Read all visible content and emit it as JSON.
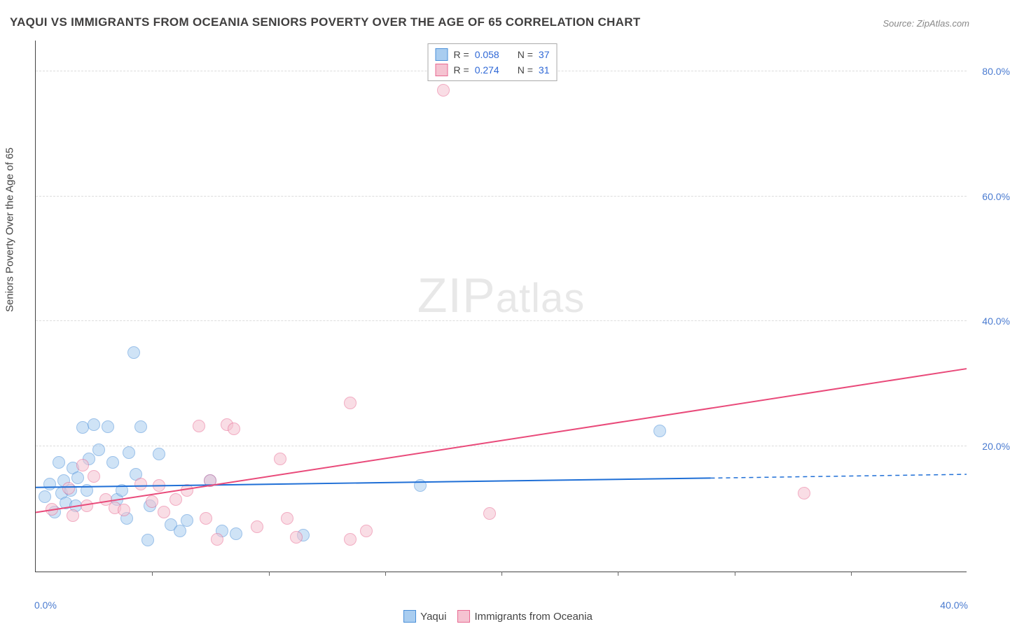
{
  "title": "YAQUI VS IMMIGRANTS FROM OCEANIA SENIORS POVERTY OVER THE AGE OF 65 CORRELATION CHART",
  "source": "Source: ZipAtlas.com",
  "watermark_a": "ZIP",
  "watermark_b": "atlas",
  "chart": {
    "type": "scatter+regression",
    "background_color": "#ffffff",
    "grid_color": "#dcdcdc",
    "axis_color": "#444444",
    "label_color": "#4a7bd0",
    "xlim": [
      0,
      40
    ],
    "ylim": [
      0,
      85
    ],
    "ytick_positions": [
      20,
      40,
      60,
      80
    ],
    "ytick_labels": [
      "20.0%",
      "40.0%",
      "60.0%",
      "80.0%"
    ],
    "xtick_minor_step": 5,
    "xtick_labels": {
      "0": "0.0%",
      "40": "40.0%"
    },
    "yaxis_title": "Seniors Poverty Over the Age of 65",
    "point_radius": 9,
    "point_opacity": 0.55,
    "series": [
      {
        "name": "Yaqui",
        "fill": "#a9cdf0",
        "stroke": "#4a8fd8",
        "line_color": "#1f6fd6",
        "R": "0.058",
        "N": "37",
        "trend": {
          "x1": 0,
          "y1": 13.5,
          "x2_solid": 29,
          "y2_solid": 15.0,
          "x2_dash": 40,
          "y2_dash": 15.6
        },
        "points": [
          [
            0.4,
            12
          ],
          [
            0.6,
            14
          ],
          [
            0.8,
            9.5
          ],
          [
            1.0,
            17.5
          ],
          [
            1.1,
            12.5
          ],
          [
            1.2,
            14.5
          ],
          [
            1.3,
            11
          ],
          [
            1.5,
            13
          ],
          [
            1.6,
            16.5
          ],
          [
            1.7,
            10.5
          ],
          [
            1.8,
            15
          ],
          [
            2.0,
            23
          ],
          [
            2.2,
            13
          ],
          [
            2.3,
            18
          ],
          [
            2.5,
            23.5
          ],
          [
            2.7,
            19.5
          ],
          [
            3.1,
            23.2
          ],
          [
            3.3,
            17.5
          ],
          [
            3.5,
            11.5
          ],
          [
            3.7,
            13
          ],
          [
            3.9,
            8.5
          ],
          [
            4.0,
            19
          ],
          [
            4.2,
            35
          ],
          [
            4.3,
            15.5
          ],
          [
            4.5,
            23.2
          ],
          [
            4.8,
            5
          ],
          [
            4.9,
            10.5
          ],
          [
            5.3,
            18.8
          ],
          [
            5.8,
            7.5
          ],
          [
            6.2,
            6.5
          ],
          [
            6.5,
            8.2
          ],
          [
            7.5,
            14.5
          ],
          [
            8.0,
            6.5
          ],
          [
            8.6,
            6
          ],
          [
            11.5,
            5.8
          ],
          [
            16.5,
            13.8
          ],
          [
            26.8,
            22.5
          ]
        ]
      },
      {
        "name": "Immigrants from Oceania",
        "fill": "#f5c3d1",
        "stroke": "#e86a92",
        "line_color": "#e94a7a",
        "R": "0.274",
        "N": "31",
        "trend": {
          "x1": 0,
          "y1": 9.5,
          "x2_solid": 40,
          "y2_solid": 32.5,
          "x2_dash": 40,
          "y2_dash": 32.5
        },
        "points": [
          [
            0.7,
            10
          ],
          [
            1.4,
            13.3
          ],
          [
            1.6,
            9
          ],
          [
            2.0,
            17
          ],
          [
            2.2,
            10.5
          ],
          [
            2.5,
            15.2
          ],
          [
            3.0,
            11.5
          ],
          [
            3.4,
            10.2
          ],
          [
            3.8,
            9.8
          ],
          [
            4.5,
            14
          ],
          [
            5.0,
            11.2
          ],
          [
            5.3,
            13.8
          ],
          [
            5.5,
            9.5
          ],
          [
            6.0,
            11.5
          ],
          [
            6.5,
            13
          ],
          [
            7.0,
            23.3
          ],
          [
            7.3,
            8.5
          ],
          [
            7.5,
            14.5
          ],
          [
            7.8,
            5.2
          ],
          [
            8.2,
            23.5
          ],
          [
            8.5,
            22.8
          ],
          [
            9.5,
            7.2
          ],
          [
            10.5,
            18
          ],
          [
            10.8,
            8.5
          ],
          [
            11.2,
            5.5
          ],
          [
            13.5,
            27
          ],
          [
            13.5,
            5.2
          ],
          [
            14.2,
            6.5
          ],
          [
            17.5,
            77
          ],
          [
            19.5,
            9.3
          ],
          [
            33.0,
            12.5
          ]
        ]
      }
    ]
  },
  "legend_bottom": [
    {
      "swatch": "#a9cdf0",
      "border": "#4a8fd8",
      "label": "Yaqui"
    },
    {
      "swatch": "#f5c3d1",
      "border": "#e86a92",
      "label": "Immigrants from Oceania"
    }
  ]
}
